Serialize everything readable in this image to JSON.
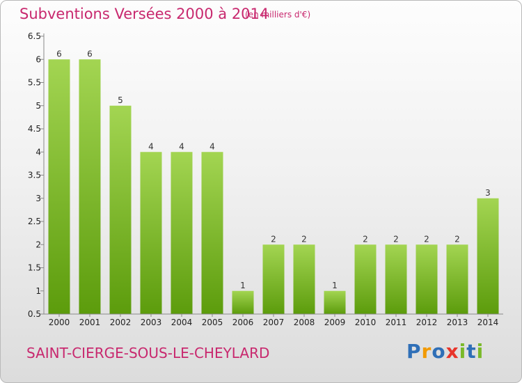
{
  "header": {
    "title": "Subventions Versées 2000 à 2014",
    "subtitle": "(en milliers d'€)"
  },
  "footer": {
    "commune": "SAINT-CIERGE-SOUS-LE-CHEYLARD",
    "logo": {
      "letters": [
        "P",
        "r",
        "o",
        "x",
        "i",
        "t",
        "i"
      ],
      "colors": [
        "#2f6fb7",
        "#f29a00",
        "#2f6fb7",
        "#e8352b",
        "#7ab929",
        "#2f6fb7",
        "#7ab929"
      ]
    }
  },
  "colors": {
    "title": "#c8286e",
    "bar_light": "#9fd150",
    "bar_dark": "#5a9a0a",
    "axis": "#888888"
  },
  "chart_data": {
    "type": "bar",
    "title": "Subventions Versées 2000 à 2014",
    "subtitle": "(en milliers d'€)",
    "xlabel": "",
    "ylabel": "",
    "categories": [
      "2000",
      "2001",
      "2002",
      "2003",
      "2004",
      "2005",
      "2006",
      "2007",
      "2008",
      "2009",
      "2010",
      "2011",
      "2012",
      "2013",
      "2014"
    ],
    "values": [
      6,
      6,
      5,
      4,
      4,
      4,
      1,
      2,
      2,
      1,
      2,
      2,
      2,
      2,
      3
    ],
    "data_labels": [
      "6",
      "6",
      "5",
      "4",
      "4",
      "4",
      "1",
      "2",
      "2",
      "1",
      "2",
      "2",
      "2",
      "2",
      "3"
    ],
    "ylim": [
      0.5,
      6.5
    ],
    "yticks": [
      0.5,
      1,
      1.5,
      2,
      2.5,
      3,
      3.5,
      4,
      4.5,
      5,
      5.5,
      6,
      6.5
    ],
    "ytick_labels": [
      "0.5",
      "1",
      "1.5",
      "2",
      "2.5",
      "3",
      "3.5",
      "4",
      "4.5",
      "5",
      "5.5",
      "6",
      "6.5"
    ],
    "grid": false,
    "legend": "none"
  }
}
